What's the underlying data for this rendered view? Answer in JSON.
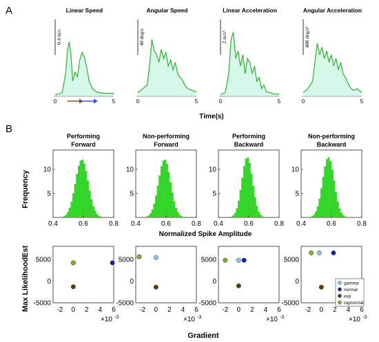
{
  "figure": {
    "panel_a_label": "A",
    "panel_b_label": "B",
    "row2_ylabel": "Frequency",
    "row2_xlabel": "Normalized Spike Amplitude",
    "row3_ylabel": "Max LikelihoodEst",
    "row3_xlabel": "Gradient",
    "colors": {
      "trace": "#2db02d",
      "glow": "#c8f5e4",
      "hist": "#1fe01f",
      "hist_edge": "#6b8f2a",
      "arrow_brown": "#9a4a1a",
      "arrow_blue": "#3355cc"
    }
  },
  "chart_data": [
    {
      "type": "line",
      "title": "Linear Speed",
      "scale_bar": "0.4 m/s",
      "x_ticks": [
        "0",
        "5"
      ],
      "xlim": [
        0,
        5
      ],
      "xlabel": "",
      "arrows": [
        "brown",
        "blue"
      ],
      "x": [
        0,
        0.3,
        0.6,
        0.9,
        1.05,
        1.2,
        1.35,
        1.5,
        1.7,
        1.9,
        2.1,
        2.3,
        2.5,
        2.7,
        2.9,
        3.2,
        3.5,
        3.8,
        4.2,
        4.6,
        5
      ],
      "y": [
        0.02,
        0.03,
        0.05,
        0.3,
        0.6,
        0.72,
        0.55,
        0.2,
        0.32,
        0.26,
        0.48,
        0.58,
        0.52,
        0.38,
        0.2,
        0.1,
        0.06,
        0.05,
        0.04,
        0.04,
        0.04
      ]
    },
    {
      "type": "line",
      "title": "Angular Speed",
      "scale_bar": "40 deg/s",
      "x_ticks": [
        "0",
        "5"
      ],
      "xlim": [
        0,
        5
      ],
      "xlabel": "",
      "x": [
        0,
        0.4,
        0.8,
        1,
        1.2,
        1.4,
        1.6,
        1.8,
        2,
        2.2,
        2.4,
        2.6,
        2.8,
        3,
        3.2,
        3.4,
        3.6,
        3.8,
        4,
        4.3,
        4.6,
        5
      ],
      "y": [
        0.05,
        0.1,
        0.15,
        0.4,
        0.75,
        0.6,
        0.55,
        0.45,
        0.62,
        0.5,
        0.58,
        0.4,
        0.48,
        0.35,
        0.45,
        0.3,
        0.25,
        0.22,
        0.15,
        0.1,
        0.08,
        0.06
      ]
    },
    {
      "type": "line",
      "title": "Linear Acceleration",
      "scale_bar": "2 m/s²",
      "x_ticks": [
        "0",
        "5"
      ],
      "xlim": [
        0,
        5
      ],
      "xlabel": "Time(s)",
      "x": [
        0,
        0.4,
        0.7,
        0.9,
        1.1,
        1.3,
        1.5,
        1.7,
        1.9,
        2.1,
        2.3,
        2.5,
        2.7,
        2.9,
        3.1,
        3.3,
        3.5,
        3.7,
        3.9,
        4.2,
        4.6,
        5
      ],
      "y": [
        0.02,
        0.05,
        0.3,
        0.75,
        0.85,
        0.5,
        0.6,
        0.4,
        0.55,
        0.3,
        0.5,
        0.45,
        0.3,
        0.4,
        0.2,
        0.25,
        0.1,
        0.15,
        0.06,
        0.05,
        0.03,
        0.03
      ]
    },
    {
      "type": "line",
      "title": "Angular Acceleration",
      "scale_bar": "400 deg/s²",
      "x_ticks": [
        "0",
        "5"
      ],
      "xlim": [
        0,
        5
      ],
      "xlabel": "",
      "x": [
        0,
        0.4,
        0.8,
        1,
        1.2,
        1.4,
        1.6,
        1.8,
        2,
        2.2,
        2.4,
        2.6,
        2.8,
        3,
        3.2,
        3.4,
        3.6,
        3.8,
        4,
        4.3,
        4.6,
        5
      ],
      "y": [
        0.05,
        0.1,
        0.2,
        0.45,
        0.7,
        0.55,
        0.65,
        0.5,
        0.6,
        0.45,
        0.55,
        0.4,
        0.5,
        0.35,
        0.45,
        0.3,
        0.25,
        0.18,
        0.12,
        0.08,
        0.1,
        0.05
      ]
    },
    {
      "type": "bar",
      "title": "Performing\nForward",
      "xlim": [
        0.4,
        0.8
      ],
      "ylim": [
        0,
        14
      ],
      "x_ticks": [
        "0.4",
        "0.6",
        "0.8"
      ],
      "y_ticks": [
        "5",
        "10"
      ],
      "mean": 0.59,
      "std": 0.042,
      "peak": 12
    },
    {
      "type": "bar",
      "title": "Non-performing\nForward",
      "xlim": [
        0.4,
        0.8
      ],
      "ylim": [
        0,
        14
      ],
      "x_ticks": [
        "0.4",
        "0.6",
        "0.8"
      ],
      "y_ticks": [
        "5",
        "10"
      ],
      "mean": 0.59,
      "std": 0.04,
      "peak": 12
    },
    {
      "type": "bar",
      "title": "Performing\nBackward",
      "xlim": [
        0.4,
        0.8
      ],
      "ylim": [
        0,
        14
      ],
      "x_ticks": [
        "0.4",
        "0.6",
        "0.8"
      ],
      "y_ticks": [
        "5",
        "10"
      ],
      "mean": 0.59,
      "std": 0.035,
      "peak": 12.5
    },
    {
      "type": "bar",
      "title": "Non-performing\nBackward",
      "xlim": [
        0.4,
        0.8
      ],
      "ylim": [
        0,
        14
      ],
      "x_ticks": [
        "0.4",
        "0.6",
        "0.8"
      ],
      "y_ticks": [
        "5",
        "10"
      ],
      "mean": 0.58,
      "std": 0.038,
      "peak": 12.5
    },
    {
      "type": "scatter",
      "xlim": [
        -3,
        6
      ],
      "ylim": [
        -5000,
        8000
      ],
      "x_ticks": [
        "-2",
        "0",
        "2",
        "4",
        "6"
      ],
      "y_ticks": [
        "5000",
        "0",
        "-5000"
      ],
      "x_exponent": "×10-3",
      "points": [
        {
          "name": "gamma",
          "x": 0,
          "y": 4200
        },
        {
          "name": "normal",
          "x": 5.8,
          "y": 4200
        },
        {
          "name": "exp",
          "x": 0,
          "y": -1300
        },
        {
          "name": "lognormal",
          "x": 0,
          "y": 4200
        }
      ]
    },
    {
      "type": "scatter",
      "xlim": [
        -3,
        6
      ],
      "ylim": [
        -5000,
        8000
      ],
      "x_ticks": [
        "-2",
        "0",
        "2",
        "4",
        "6"
      ],
      "y_ticks": [
        "5000",
        "0",
        "-5000"
      ],
      "x_exponent": "×10-3",
      "points": [
        {
          "name": "gamma",
          "x": 0,
          "y": 5400
        },
        {
          "name": "normal",
          "x": -2.5,
          "y": 5600
        },
        {
          "name": "exp",
          "x": 0,
          "y": -1400
        },
        {
          "name": "lognormal",
          "x": -2.5,
          "y": 5600
        }
      ]
    },
    {
      "type": "scatter",
      "xlim": [
        -3,
        6
      ],
      "ylim": [
        -5000,
        8000
      ],
      "x_ticks": [
        "-2",
        "0",
        "2",
        "4",
        "6"
      ],
      "y_ticks": [
        "5000",
        "0",
        "-5000"
      ],
      "x_exponent": "×10-3",
      "points": [
        {
          "name": "gamma",
          "x": 0,
          "y": 4800
        },
        {
          "name": "normal",
          "x": 0.8,
          "y": 4800
        },
        {
          "name": "exp",
          "x": 0,
          "y": -1100
        },
        {
          "name": "lognormal",
          "x": -2,
          "y": 4800
        }
      ]
    },
    {
      "type": "scatter",
      "xlim": [
        -3,
        6
      ],
      "ylim": [
        -5000,
        8000
      ],
      "x_ticks": [
        "-2",
        "0",
        "2",
        "4",
        "6"
      ],
      "y_ticks": [
        "5000",
        "0",
        "-5000"
      ],
      "x_exponent": "×10-3",
      "legend": [
        "gamma",
        "normal",
        "exp",
        "lognormal"
      ],
      "legend_position": "right",
      "points": [
        {
          "name": "gamma",
          "x": -0.3,
          "y": 6500
        },
        {
          "name": "normal",
          "x": 1.8,
          "y": 6500
        },
        {
          "name": "exp",
          "x": 0,
          "y": -1400
        },
        {
          "name": "lognormal",
          "x": -1.5,
          "y": 6500
        }
      ]
    }
  ],
  "scatter_colors": {
    "gamma": "#8ec5ec",
    "normal": "#1122aa",
    "exp": "#5b3b10",
    "lognormal": "#8aa832"
  }
}
